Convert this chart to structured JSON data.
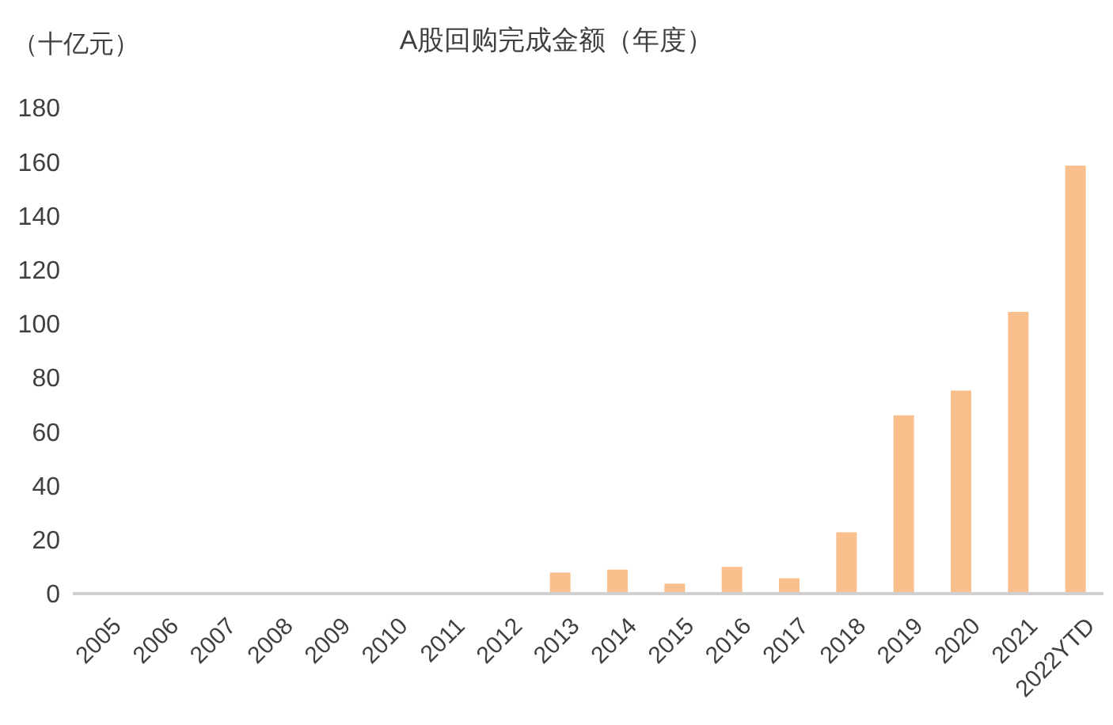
{
  "chart_data": {
    "type": "bar",
    "title": "A股回购完成金额（年度）",
    "ylabel": "（十亿元）",
    "categories": [
      "2005",
      "2006",
      "2007",
      "2008",
      "2009",
      "2010",
      "2011",
      "2012",
      "2013",
      "2014",
      "2015",
      "2016",
      "2017",
      "2018",
      "2019",
      "2020",
      "2021",
      "2022YTD"
    ],
    "values": [
      0,
      0,
      0,
      0,
      0,
      0,
      0,
      0,
      7.8,
      8.9,
      3.7,
      9.9,
      5.7,
      22.7,
      66,
      75.2,
      104.4,
      158.5
    ],
    "color": "#f9c08e",
    "ylim": [
      0,
      180
    ],
    "yticks": [
      0,
      20,
      40,
      60,
      80,
      100,
      120,
      140,
      160,
      180
    ],
    "grid": false,
    "legend": false
  }
}
